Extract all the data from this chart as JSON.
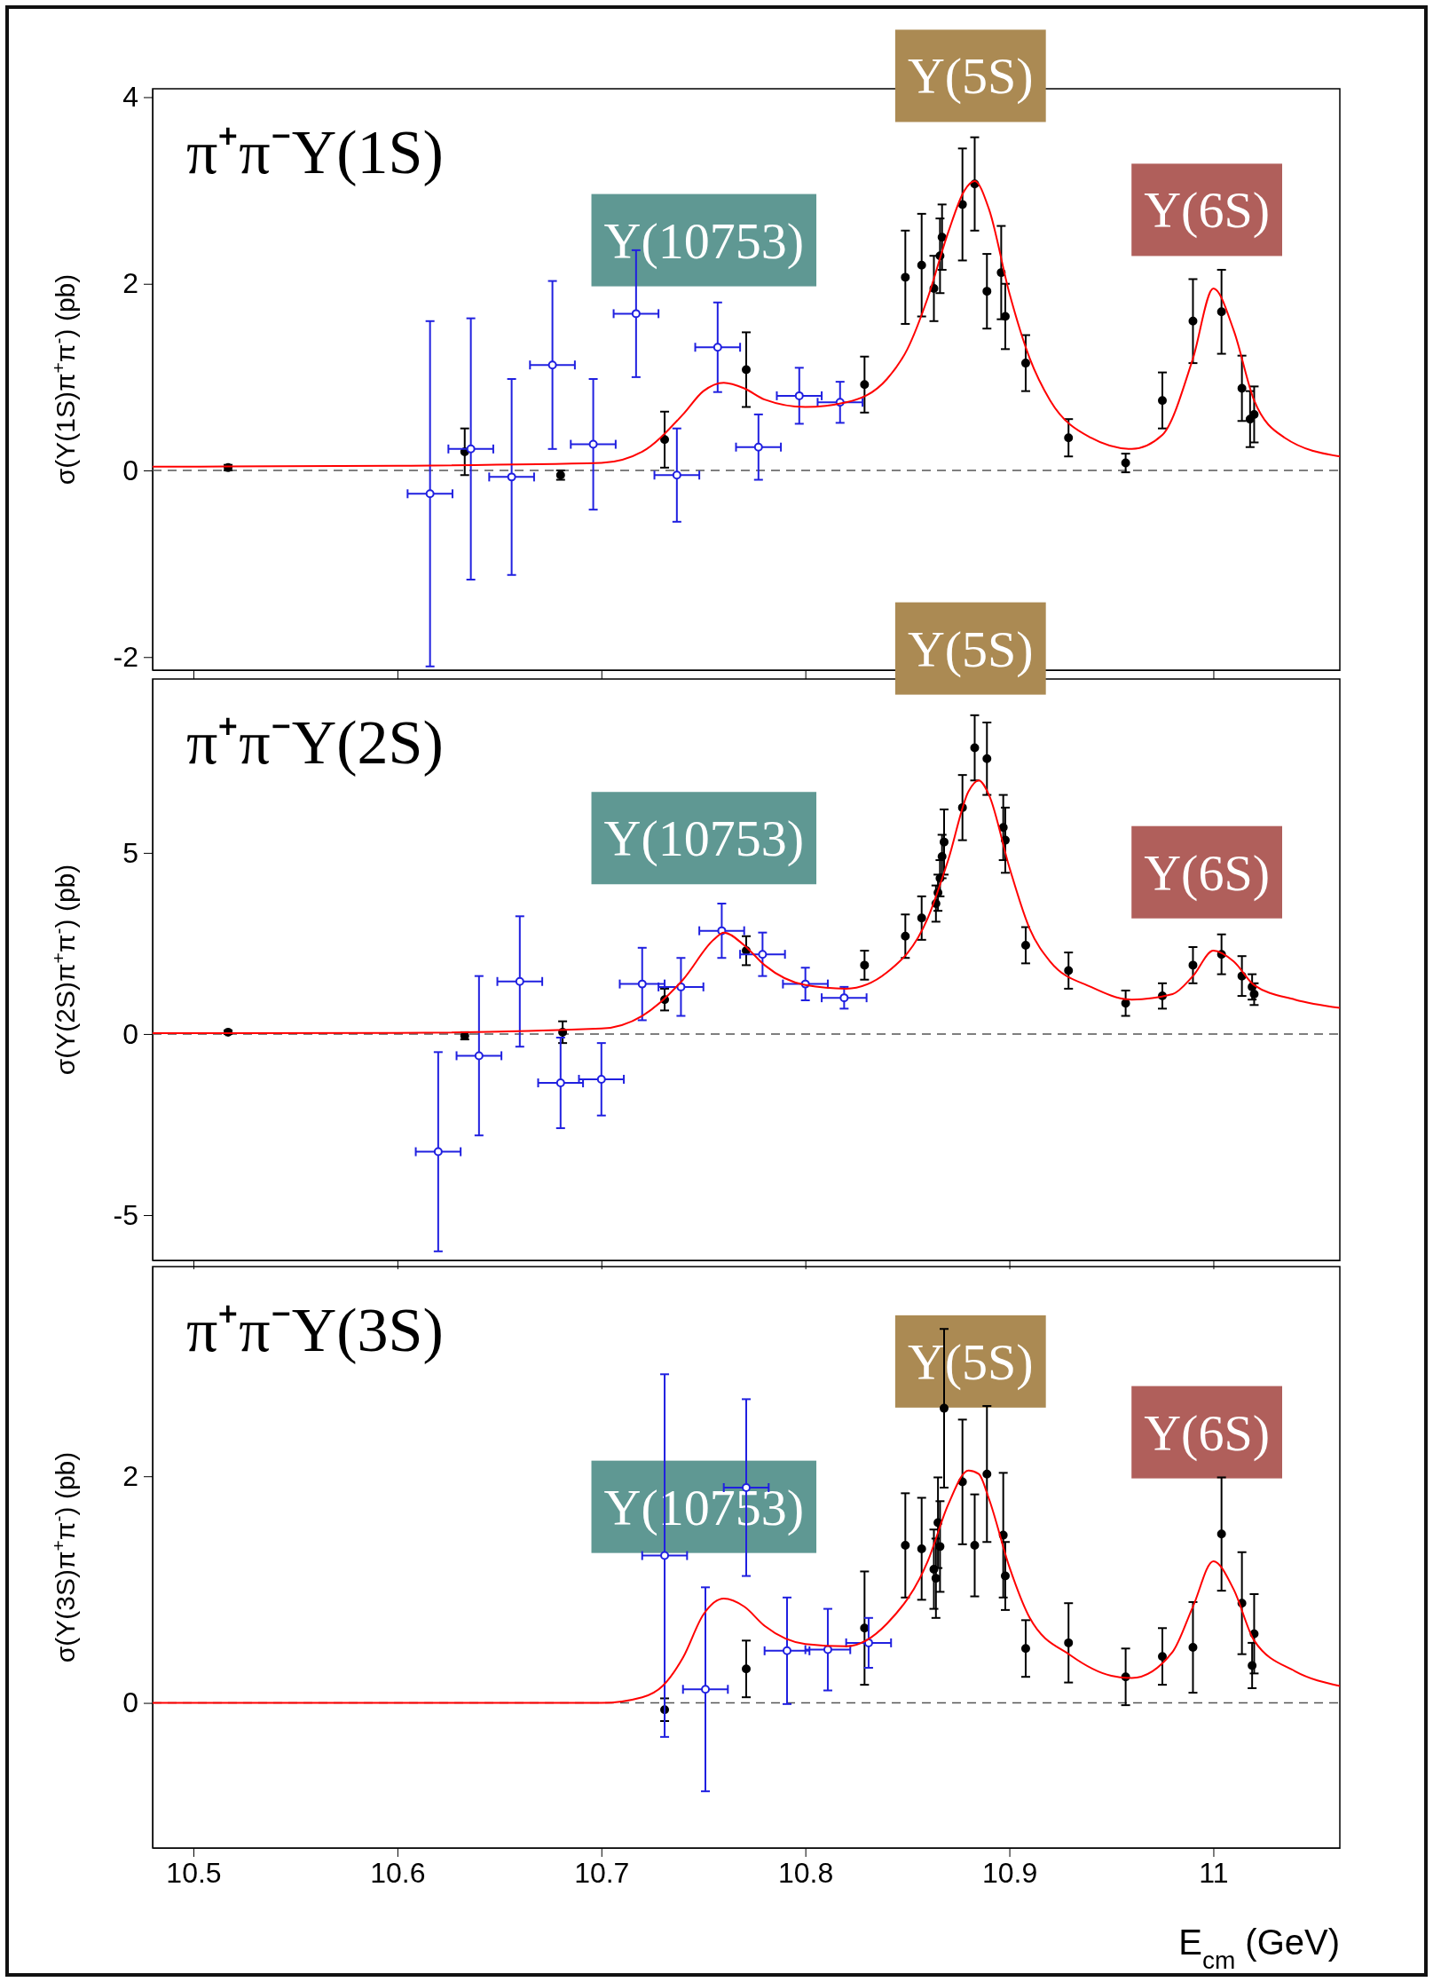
{
  "chart_data": [
    {
      "type": "scatter",
      "title": "π⁺π⁻Υ(1S)",
      "ylabel": "σ(Υ(1S)π$^{+}$π$^{-}$) (pb)",
      "xlim": [
        10.48,
        11.062
      ],
      "ylim": [
        -2.14,
        4.09
      ],
      "xticks": [
        10.5,
        10.6,
        10.7,
        10.8,
        10.9,
        11
      ],
      "yticks": [
        -2,
        0,
        2,
        4
      ],
      "tick_labels": "y",
      "ref_lines": [
        {
          "axis": "y",
          "value": 0,
          "color": "#555555",
          "line_style": "dashed"
        }
      ],
      "annotations": [
        "Υ(10753)",
        "Υ(5S)",
        "Υ(6S)"
      ],
      "series": [
        {
          "marker": "circle",
          "color": "#000000",
          "x": [
            10.517,
            10.633,
            10.68,
            10.731,
            10.771,
            10.829,
            10.849,
            10.857,
            10.863,
            10.865,
            10.866,
            10.867,
            10.877,
            10.883,
            10.889,
            10.896,
            10.898,
            10.908,
            10.929,
            10.957,
            10.975,
            10.99,
            11.004,
            11.014,
            11.018,
            11.02
          ],
          "values": [
            0.03,
            0.2,
            -0.05,
            0.33,
            1.08,
            0.92,
            2.07,
            2.2,
            1.95,
            null,
            2.3,
            2.5,
            2.85,
            3.07,
            1.92,
            2.12,
            1.65,
            1.15,
            0.35,
            0.08,
            0.75,
            1.6,
            1.7,
            0.88,
            0.55,
            0.6
          ],
          "errors": [
            0.03,
            0.25,
            0.05,
            0.3,
            0.4,
            0.3,
            0.5,
            0.55,
            0.35,
            null,
            0.4,
            0.35,
            0.6,
            0.5,
            0.4,
            0.5,
            0.35,
            0.3,
            0.2,
            0.1,
            0.3,
            0.45,
            0.45,
            0.35,
            0.3,
            0.3
          ]
        },
        {
          "marker": "circle",
          "color": "#2020e0",
          "x": [
            10.616,
            10.636,
            10.656,
            10.676,
            10.696,
            10.717,
            10.737,
            10.757,
            10.777,
            10.797,
            10.817
          ],
          "values": [
            -0.25,
            0.23,
            -0.07,
            1.13,
            0.28,
            1.68,
            -0.05,
            1.32,
            0.25,
            0.8,
            0.73
          ],
          "errors": [
            1.85,
            1.4,
            1.05,
            0.9,
            0.7,
            0.68,
            0.5,
            0.48,
            0.35,
            0.3,
            0.22
          ],
          "xerrors": [
            0.011,
            0.011,
            0.011,
            0.011,
            0.011,
            0.011,
            0.011,
            0.011,
            0.011,
            0.011,
            0.011
          ]
        },
        {
          "type": "line",
          "color": "#ff0000",
          "x": [
            10.48,
            10.6,
            10.7,
            10.72,
            10.74,
            10.75,
            10.76,
            10.77,
            10.78,
            10.8,
            10.82,
            10.84,
            10.85,
            10.86,
            10.87,
            10.878,
            10.883,
            10.89,
            10.9,
            10.91,
            10.92,
            10.94,
            10.96,
            10.975,
            10.99,
            11.0,
            11.01,
            11.02,
            11.035,
            11.062
          ],
          "values": [
            0.04,
            0.05,
            0.08,
            0.2,
            0.6,
            0.85,
            0.94,
            0.88,
            0.76,
            0.68,
            0.73,
            0.98,
            1.3,
            1.85,
            2.55,
            3.0,
            3.1,
            2.8,
            1.9,
            1.2,
            0.75,
            0.35,
            0.23,
            0.38,
            1.2,
            1.95,
            1.5,
            0.75,
            0.35,
            0.15
          ]
        }
      ]
    },
    {
      "type": "scatter",
      "title": "π⁺π⁻Υ(2S)",
      "ylabel": "σ(Υ(2S)π$^{+}$π$^{-}$) (pb)",
      "xlim": [
        10.48,
        11.062
      ],
      "ylim": [
        -6.25,
        9.8
      ],
      "xticks": [
        10.5,
        10.6,
        10.7,
        10.8,
        10.9,
        11
      ],
      "yticks": [
        -5,
        0,
        5
      ],
      "tick_labels": "y",
      "ref_lines": [
        {
          "axis": "y",
          "value": 0,
          "color": "#555555",
          "line_style": "dashed"
        }
      ],
      "annotations": [
        "Υ(10753)",
        "Υ(5S)",
        "Υ(6S)"
      ],
      "series": [
        {
          "marker": "circle",
          "color": "#000000",
          "x": [
            10.517,
            10.633,
            10.681,
            10.731,
            10.771,
            10.829,
            10.849,
            10.857,
            10.864,
            10.865,
            10.866,
            10.867,
            10.868,
            10.877,
            10.883,
            10.889,
            10.897,
            10.898,
            10.908,
            10.929,
            10.957,
            10.975,
            10.99,
            11.004,
            11.014,
            11.019,
            11.02
          ],
          "values": [
            0.05,
            -0.05,
            0.05,
            0.95,
            2.3,
            1.9,
            2.7,
            3.2,
            3.6,
            3.9,
            4.3,
            4.9,
            5.3,
            6.25,
            7.9,
            7.6,
            5.7,
            5.35,
            2.45,
            1.75,
            0.85,
            1.05,
            1.9,
            2.2,
            1.6,
            1.3,
            1.1
          ],
          "errors": [
            0.05,
            0.1,
            0.3,
            0.3,
            0.4,
            0.4,
            0.6,
            0.6,
            0.5,
            0.5,
            0.5,
            0.6,
            0.9,
            0.9,
            0.9,
            1.0,
            0.9,
            0.9,
            0.5,
            0.5,
            0.35,
            0.35,
            0.5,
            0.55,
            0.55,
            0.35,
            0.3
          ]
        },
        {
          "marker": "circle",
          "color": "#2020e0",
          "x": [
            10.62,
            10.64,
            10.66,
            10.68,
            10.7,
            10.72,
            10.739,
            10.759,
            10.779,
            10.8,
            10.819
          ],
          "values": [
            -3.25,
            -0.6,
            1.45,
            -1.35,
            -1.25,
            1.38,
            1.3,
            2.85,
            2.2,
            1.38,
            1.0
          ],
          "errors": [
            2.75,
            2.2,
            1.8,
            1.25,
            1.0,
            1.0,
            0.8,
            0.75,
            0.6,
            0.45,
            0.3
          ],
          "xerrors": [
            0.011,
            0.011,
            0.011,
            0.011,
            0.011,
            0.011,
            0.011,
            0.011,
            0.011,
            0.011,
            0.011
          ]
        },
        {
          "type": "line",
          "color": "#ff0000",
          "x": [
            10.48,
            10.6,
            10.7,
            10.72,
            10.74,
            10.755,
            10.76,
            10.77,
            10.78,
            10.8,
            10.82,
            10.84,
            10.86,
            10.87,
            10.88,
            10.885,
            10.89,
            10.9,
            10.91,
            10.92,
            10.94,
            10.96,
            10.98,
            10.99,
            11.0,
            11.01,
            11.02,
            11.04,
            11.062
          ],
          "values": [
            0.02,
            0.03,
            0.15,
            0.5,
            1.5,
            2.6,
            2.8,
            2.45,
            1.9,
            1.35,
            1.25,
            1.7,
            3.2,
            4.8,
            6.7,
            7.0,
            6.6,
            4.6,
            2.9,
            2.0,
            1.3,
            0.95,
            1.1,
            1.6,
            2.3,
            2.0,
            1.35,
            0.95,
            0.72
          ]
        }
      ]
    },
    {
      "type": "scatter",
      "title": "π⁺π⁻Υ(3S)",
      "ylabel": "σ(Υ(3S)π$^{+}$π$^{-}$) (pb)",
      "xlabel": "E$_{cm}$ (GeV)",
      "xlim": [
        10.48,
        11.062
      ],
      "ylim": [
        -1.28,
        3.85
      ],
      "xticks": [
        10.5,
        10.6,
        10.7,
        10.8,
        10.9,
        11
      ],
      "yticks": [
        0,
        2
      ],
      "ref_lines": [
        {
          "axis": "y",
          "value": 0,
          "color": "#555555",
          "line_style": "dashed"
        }
      ],
      "annotations": [
        "Υ(10753)",
        "Υ(5S)",
        "Υ(6S)"
      ],
      "series": [
        {
          "marker": "circle",
          "color": "#000000",
          "x": [
            10.731,
            10.771,
            10.829,
            10.849,
            10.857,
            10.863,
            10.864,
            10.865,
            10.866,
            10.868,
            10.877,
            10.883,
            10.889,
            10.897,
            10.898,
            10.908,
            10.929,
            10.957,
            10.975,
            10.99,
            11.004,
            11.014,
            11.019,
            11.02
          ],
          "values": [
            -0.06,
            0.3,
            0.66,
            1.39,
            1.36,
            1.18,
            1.1,
            1.59,
            1.38,
            2.6,
            1.95,
            1.39,
            2.02,
            1.48,
            1.12,
            0.48,
            0.53,
            0.23,
            0.41,
            0.49,
            1.49,
            0.88,
            0.33,
            0.61
          ],
          "errors": [
            0.1,
            0.25,
            0.5,
            0.46,
            0.45,
            0.35,
            0.35,
            0.4,
            0.4,
            0.7,
            0.55,
            0.45,
            0.6,
            0.55,
            0.3,
            0.25,
            0.35,
            0.25,
            0.25,
            0.4,
            0.5,
            0.45,
            0.2,
            0.35
          ]
        },
        {
          "marker": "circle",
          "color": "#2020e0",
          "x": [
            10.731,
            10.751,
            10.771,
            10.791,
            10.811,
            10.831
          ],
          "values": [
            1.3,
            0.12,
            1.9,
            0.46,
            0.47,
            0.53
          ],
          "errors": [
            1.6,
            0.9,
            0.78,
            0.47,
            0.36,
            0.22
          ],
          "xerrors": [
            0.011,
            0.011,
            0.011,
            0.011,
            0.011,
            0.011
          ]
        },
        {
          "type": "line",
          "color": "#ff0000",
          "x": [
            10.48,
            10.7,
            10.72,
            10.73,
            10.74,
            10.75,
            10.76,
            10.77,
            10.78,
            10.8,
            10.82,
            10.84,
            10.86,
            10.87,
            10.88,
            10.885,
            10.89,
            10.9,
            10.91,
            10.93,
            10.95,
            10.96,
            10.98,
            10.99,
            11.0,
            11.01,
            11.02,
            11.04,
            11.062
          ],
          "values": [
            0,
            0,
            0.05,
            0.15,
            0.4,
            0.78,
            0.92,
            0.85,
            0.68,
            0.52,
            0.5,
            0.7,
            1.25,
            1.75,
            2.05,
            2.02,
            1.8,
            1.2,
            0.75,
            0.42,
            0.24,
            0.22,
            0.45,
            0.85,
            1.25,
            1.0,
            0.55,
            0.28,
            0.15
          ]
        }
      ]
    }
  ]
}
